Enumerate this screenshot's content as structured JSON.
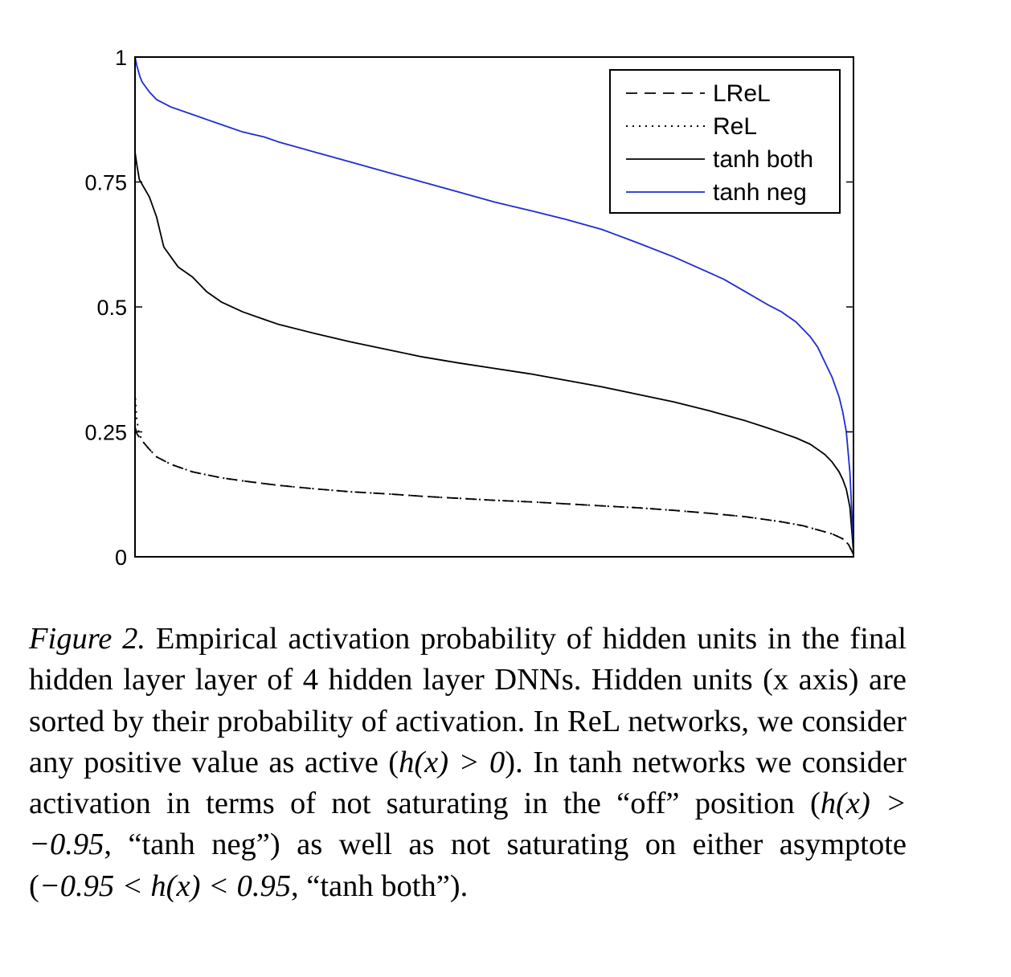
{
  "chart_data": {
    "type": "line",
    "title": "",
    "xlabel": "",
    "ylabel": "",
    "xlim": [
      0,
      100
    ],
    "ylim": [
      0,
      1
    ],
    "y_ticks": [
      0,
      0.25,
      0.5,
      0.75,
      1
    ],
    "y_tick_labels": [
      "0",
      "0.25",
      "0.5",
      "0.75",
      "1"
    ],
    "x_ticks": [],
    "grid": false,
    "legend_position": "top-right",
    "series": [
      {
        "name": "LReL",
        "style": "dashed",
        "color": "#000000",
        "x": [
          0,
          0.3,
          1,
          2,
          3,
          5,
          8,
          12,
          16,
          20,
          25,
          30,
          35,
          40,
          45,
          50,
          55,
          60,
          65,
          70,
          75,
          80,
          85,
          90,
          93,
          95,
          97,
          98.5,
          99.3,
          100
        ],
        "y": [
          0.26,
          0.245,
          0.232,
          0.215,
          0.2,
          0.185,
          0.17,
          0.158,
          0.15,
          0.143,
          0.136,
          0.13,
          0.126,
          0.121,
          0.117,
          0.113,
          0.11,
          0.106,
          0.102,
          0.098,
          0.093,
          0.087,
          0.08,
          0.07,
          0.062,
          0.054,
          0.046,
          0.036,
          0.025,
          0.005
        ]
      },
      {
        "name": "ReL",
        "style": "dotted",
        "color": "#000000",
        "x": [
          0,
          0.2,
          0.5,
          1,
          2,
          3,
          5,
          8,
          12,
          16,
          20,
          25,
          30,
          35,
          40,
          45,
          50,
          55,
          60,
          65,
          70,
          75,
          80,
          85,
          90,
          93,
          95,
          97,
          98.5,
          99.3,
          100
        ],
        "y": [
          0.33,
          0.28,
          0.25,
          0.232,
          0.215,
          0.2,
          0.185,
          0.17,
          0.158,
          0.15,
          0.143,
          0.136,
          0.13,
          0.126,
          0.121,
          0.117,
          0.113,
          0.11,
          0.106,
          0.102,
          0.098,
          0.093,
          0.087,
          0.08,
          0.07,
          0.062,
          0.054,
          0.046,
          0.036,
          0.025,
          0.005
        ]
      },
      {
        "name": "tanh both",
        "style": "solid",
        "color": "#000000",
        "x": [
          0,
          0.3,
          0.6,
          1,
          2,
          3,
          4,
          5,
          6,
          8,
          10,
          12,
          15,
          18,
          20,
          25,
          30,
          35,
          40,
          45,
          50,
          55,
          60,
          65,
          70,
          75,
          80,
          85,
          88,
          90,
          92,
          94,
          96,
          97,
          98,
          98.5,
          99,
          99.5,
          100
        ],
        "y": [
          0.81,
          0.78,
          0.755,
          0.745,
          0.72,
          0.68,
          0.62,
          0.6,
          0.58,
          0.56,
          0.53,
          0.51,
          0.49,
          0.475,
          0.465,
          0.447,
          0.43,
          0.415,
          0.4,
          0.388,
          0.377,
          0.366,
          0.353,
          0.34,
          0.325,
          0.31,
          0.292,
          0.272,
          0.258,
          0.248,
          0.238,
          0.225,
          0.205,
          0.19,
          0.17,
          0.155,
          0.135,
          0.1,
          0.01
        ]
      },
      {
        "name": "tanh neg",
        "style": "solid",
        "color": "#1f2bd4",
        "x": [
          0,
          0.3,
          0.7,
          1,
          2,
          3,
          5,
          8,
          10,
          12,
          15,
          18,
          20,
          25,
          30,
          35,
          40,
          45,
          50,
          55,
          60,
          65,
          70,
          75,
          80,
          82,
          85,
          88,
          90,
          92,
          94,
          95,
          96,
          97,
          98,
          98.5,
          99,
          99.5,
          100
        ],
        "y": [
          1.0,
          0.98,
          0.96,
          0.95,
          0.93,
          0.915,
          0.9,
          0.885,
          0.875,
          0.865,
          0.85,
          0.84,
          0.83,
          0.81,
          0.79,
          0.77,
          0.75,
          0.73,
          0.71,
          0.693,
          0.675,
          0.655,
          0.628,
          0.6,
          0.568,
          0.555,
          0.53,
          0.505,
          0.49,
          0.47,
          0.44,
          0.42,
          0.39,
          0.36,
          0.32,
          0.29,
          0.25,
          0.17,
          0.02
        ]
      }
    ]
  },
  "caption": {
    "label": "Figure 2.",
    "text_1": " Empirical activation probability of hidden units in the final hidden layer layer of 4 hidden layer DNNs. Hidden units (x axis) are sorted by their probability of activation. In ReL networks, we consider any positive value as active (",
    "math_1": "h(x) > 0",
    "text_2": ").  In tanh networks we consider activation in terms of not saturating in the “off” position (",
    "math_2": "h(x) > −0.95",
    "text_3": ", “tanh neg”) as well as not saturating on either asymptote (",
    "math_3": "−0.95 < h(x) < 0.95",
    "text_4": ", “tanh both”)."
  }
}
